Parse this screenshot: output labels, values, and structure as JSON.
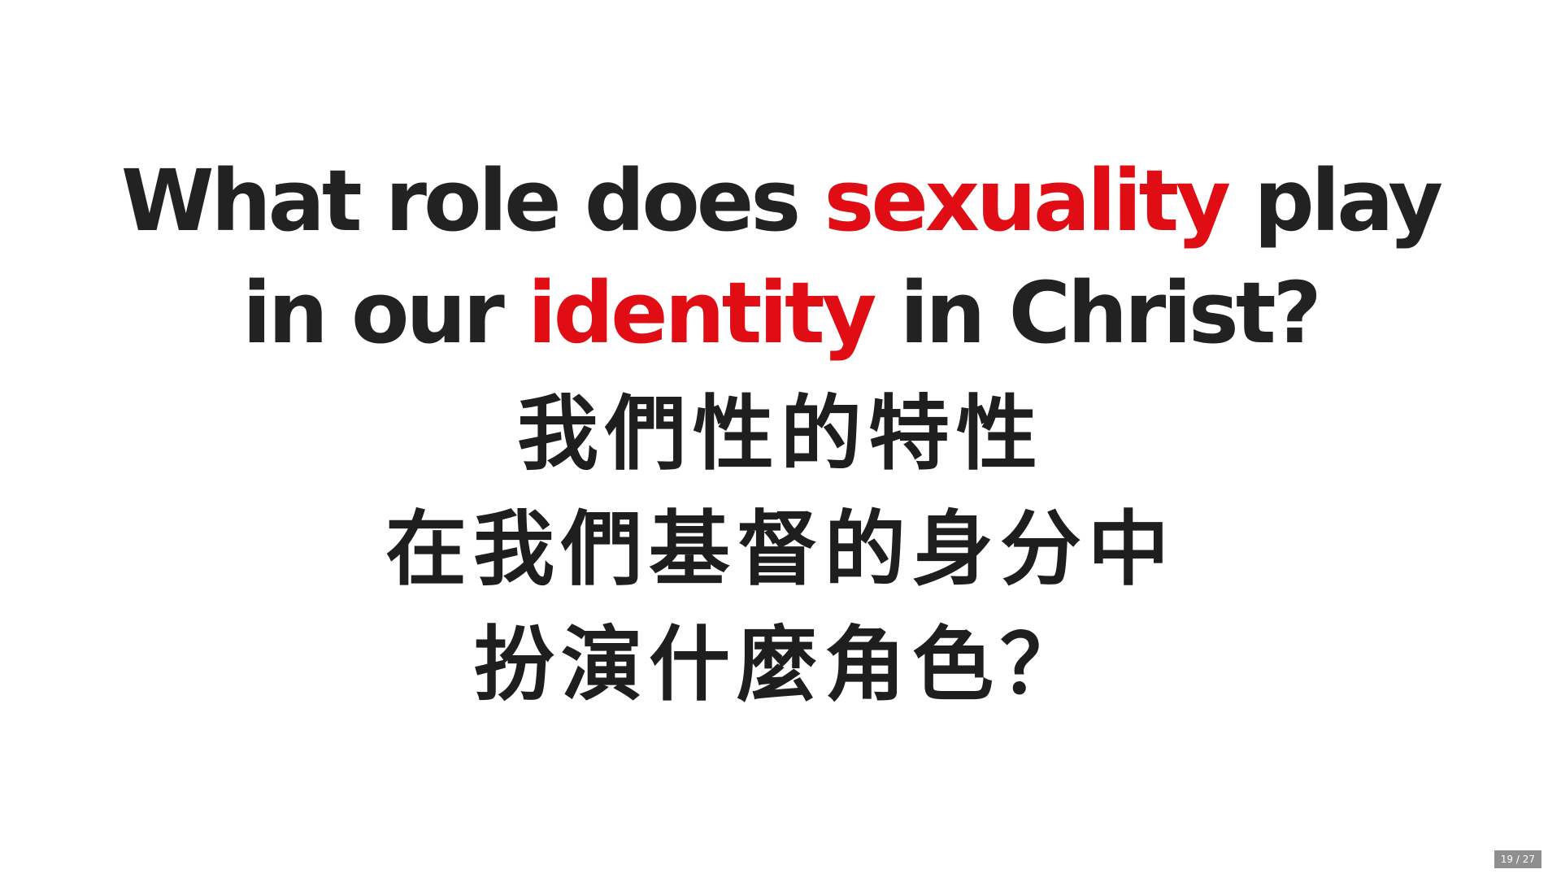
{
  "slide": {
    "english_line1": {
      "before": "What role does ",
      "highlight": "sexuality",
      "after": " play"
    },
    "english_line2": {
      "before": "in our ",
      "highlight": "identity",
      "after": " in Christ?"
    },
    "chinese_lines": [
      "我們性的特性",
      "在我們基督的身分中",
      "扮演什麼角色？"
    ]
  },
  "colors": {
    "text": "#222222",
    "accent": "#e10d14",
    "background": "#ffffff",
    "counter_bg": "#8f8f8f"
  },
  "page_counter": {
    "current": "19",
    "separator": "/",
    "total": "27"
  }
}
